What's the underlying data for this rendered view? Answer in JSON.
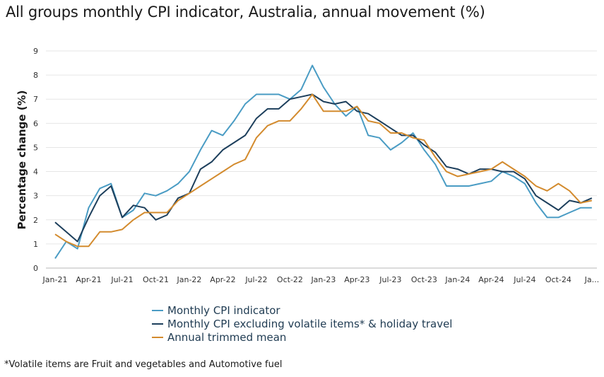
{
  "chart_data": {
    "type": "line",
    "title": "All groups monthly CPI indicator, Australia, annual movement (%)",
    "xlabel": "",
    "ylabel": "Percentage change (%)",
    "ylim": [
      0,
      9
    ],
    "yticks": [
      "0",
      "1",
      "2",
      "3",
      "4",
      "5",
      "6",
      "7",
      "8",
      "9"
    ],
    "xticks": [
      "Jan-21",
      "Apr-21",
      "Jul-21",
      "Oct-21",
      "Jan-22",
      "Apr-22",
      "Jul-22",
      "Oct-22",
      "Jan-23",
      "Apr-23",
      "Jul-23",
      "Oct-23",
      "Jan-24",
      "Apr-24",
      "Jul-24",
      "Oct-24",
      "Ja..."
    ],
    "grid": true,
    "legend_position": "bottom",
    "x_range": "Jan-21 to Jan-25 (monthly, 49 points)",
    "series": [
      {
        "name": "Monthly CPI indicator",
        "color": "#4a9cc4",
        "values": [
          0.4,
          1.1,
          0.8,
          2.5,
          3.3,
          3.5,
          2.1,
          2.4,
          3.1,
          3.0,
          3.2,
          3.5,
          4.0,
          4.9,
          5.7,
          5.5,
          6.1,
          6.8,
          7.2,
          7.2,
          7.2,
          7.0,
          7.4,
          8.4,
          7.5,
          6.8,
          6.3,
          6.7,
          5.5,
          5.4,
          4.9,
          5.2,
          5.6,
          4.9,
          4.3,
          3.4,
          3.4,
          3.4,
          3.5,
          3.6,
          4.0,
          3.8,
          3.5,
          2.7,
          2.1,
          2.1,
          2.3,
          2.5,
          2.5
        ]
      },
      {
        "name": "Monthly CPI excluding volatile items* & holiday travel",
        "color": "#1d3f5c",
        "values": [
          1.9,
          1.5,
          1.1,
          2.1,
          3.0,
          3.4,
          2.1,
          2.6,
          2.5,
          2.0,
          2.2,
          2.9,
          3.1,
          4.1,
          4.4,
          4.9,
          5.2,
          5.5,
          6.2,
          6.6,
          6.6,
          7.0,
          7.1,
          7.2,
          6.9,
          6.8,
          6.9,
          6.5,
          6.4,
          6.1,
          5.8,
          5.5,
          5.5,
          5.1,
          4.8,
          4.2,
          4.1,
          3.9,
          4.1,
          4.1,
          4.0,
          4.0,
          3.7,
          3.0,
          2.7,
          2.4,
          2.8,
          2.7,
          2.9
        ]
      },
      {
        "name": "Annual trimmed mean",
        "color": "#d38b2e",
        "values": [
          1.4,
          1.1,
          0.9,
          0.9,
          1.5,
          1.5,
          1.6,
          2.0,
          2.3,
          2.3,
          2.3,
          2.8,
          3.1,
          3.4,
          3.7,
          4.0,
          4.3,
          4.5,
          5.4,
          5.9,
          6.1,
          6.1,
          6.6,
          7.2,
          6.5,
          6.5,
          6.5,
          6.7,
          6.1,
          6.0,
          5.6,
          5.6,
          5.4,
          5.3,
          4.6,
          4.0,
          3.8,
          3.9,
          4.0,
          4.1,
          4.4,
          4.1,
          3.8,
          3.4,
          3.2,
          3.5,
          3.2,
          2.7,
          2.8
        ]
      }
    ],
    "footnote": "*Volatile items are Fruit and vegetables and Automotive fuel"
  }
}
